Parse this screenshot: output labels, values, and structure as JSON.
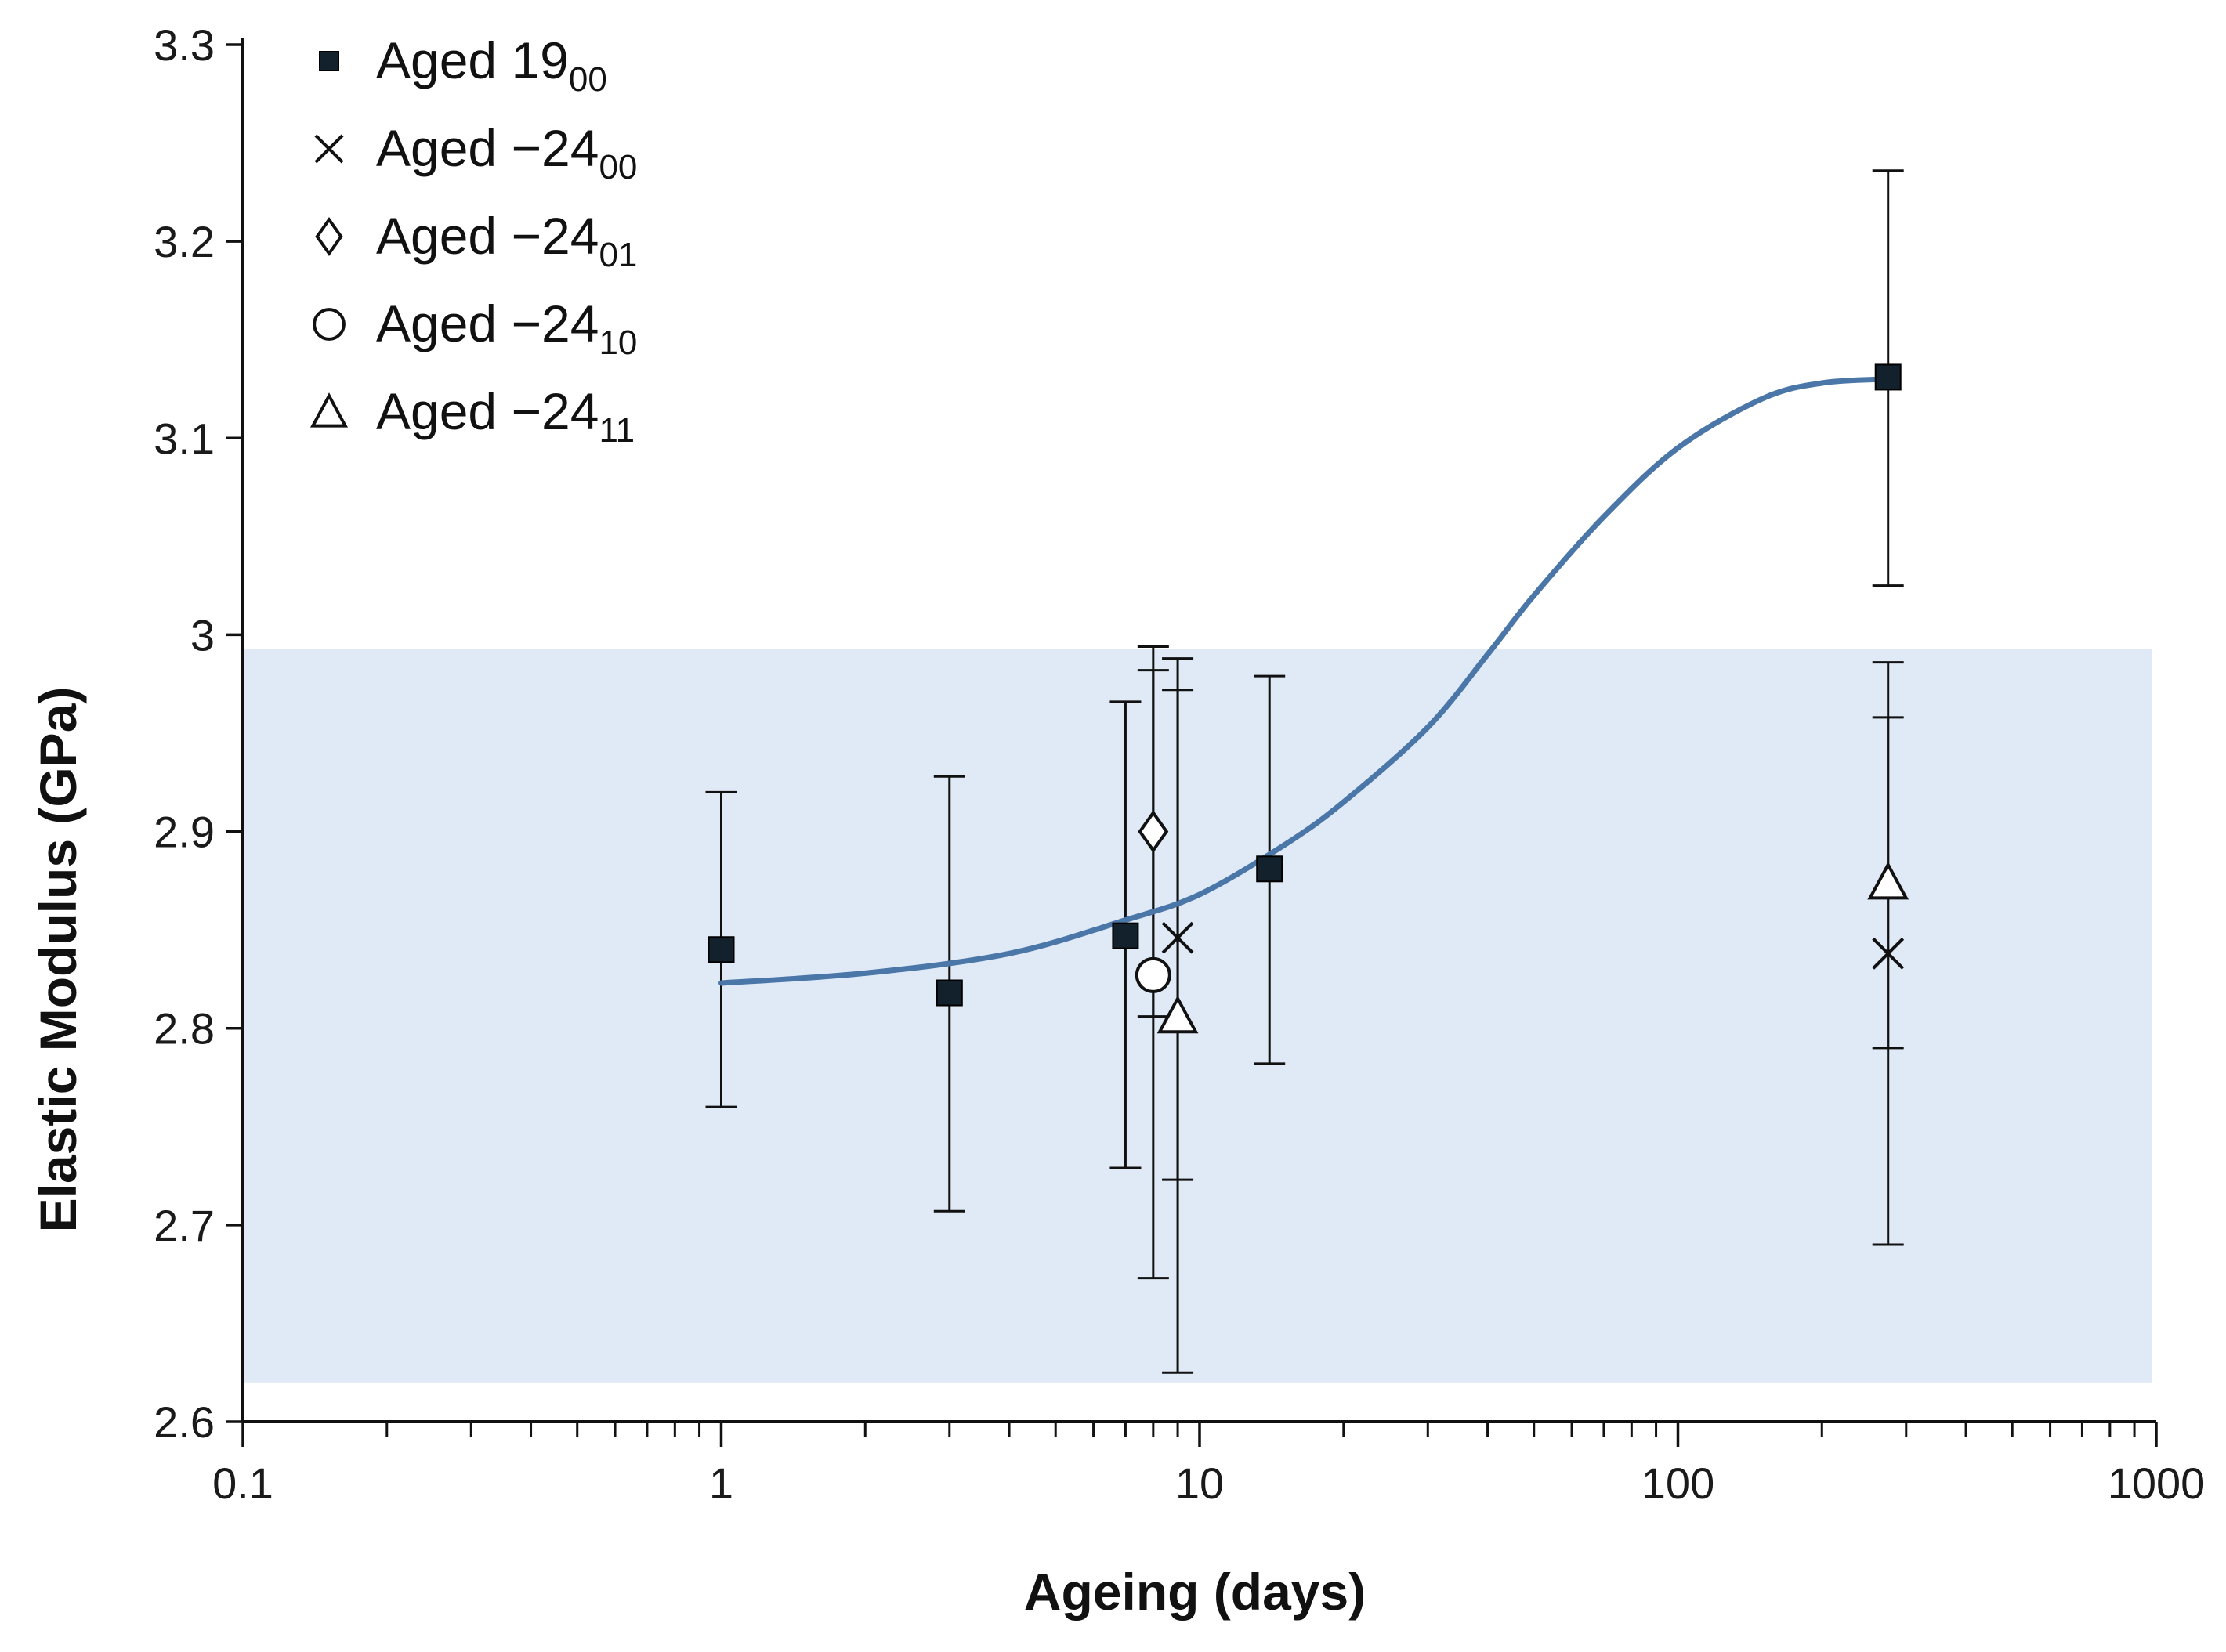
{
  "chart_data": {
    "type": "scatter",
    "title": "",
    "xlabel": "Ageing (days)",
    "ylabel": "Elastic Modulus (GPa)",
    "xscale": "log",
    "xlim": [
      0.1,
      1000
    ],
    "ylim": [
      2.6,
      3.3
    ],
    "x_ticks": [
      0.1,
      1,
      10,
      100,
      1000
    ],
    "x_tick_labels": [
      "0.1",
      "1",
      "10",
      "100",
      "1000"
    ],
    "y_ticks": [
      2.6,
      2.7,
      2.8,
      2.9,
      3.0,
      3.1,
      3.2,
      3.3
    ],
    "y_tick_labels": [
      "2.6",
      "2.7",
      "2.8",
      "2.9",
      "3",
      "3.1",
      "3.2",
      "3.3"
    ],
    "grid": false,
    "legend_position": "top-left",
    "shaded_band": {
      "x_range": [
        0.1,
        1000
      ],
      "y_range": [
        2.62,
        2.993
      ],
      "color": "#dfeaf6"
    },
    "fit_curve": {
      "color": "#4a76a8",
      "points": [
        [
          1,
          2.823
        ],
        [
          2,
          2.828
        ],
        [
          4,
          2.838
        ],
        [
          7,
          2.855
        ],
        [
          10,
          2.868
        ],
        [
          15,
          2.893
        ],
        [
          20,
          2.915
        ],
        [
          30,
          2.953
        ],
        [
          40,
          2.99
        ],
        [
          50,
          3.02
        ],
        [
          70,
          3.06
        ],
        [
          100,
          3.095
        ],
        [
          150,
          3.12
        ],
        [
          200,
          3.128
        ],
        [
          275,
          3.13
        ]
      ]
    },
    "series": [
      {
        "name": "Aged 19",
        "subscript": "00",
        "marker": "square",
        "points": [
          {
            "x": 1,
            "y": 2.84,
            "err_low": 2.76,
            "err_high": 2.92
          },
          {
            "x": 3,
            "y": 2.818,
            "err_low": 2.707,
            "err_high": 2.928
          },
          {
            "x": 7,
            "y": 2.847,
            "err_low": 2.729,
            "err_high": 2.966
          },
          {
            "x": 14,
            "y": 2.881,
            "err_low": 2.782,
            "err_high": 2.979
          },
          {
            "x": 275,
            "y": 3.131,
            "err_low": 3.025,
            "err_high": 3.236
          }
        ]
      },
      {
        "name": "Aged −24",
        "subscript": "00",
        "marker": "x",
        "points": [
          {
            "x": 9,
            "y": 2.846,
            "err_low": 2.723,
            "err_high": 2.988
          },
          {
            "x": 275,
            "y": 2.838,
            "err_low": 2.69,
            "err_high": 2.986
          }
        ]
      },
      {
        "name": "Aged −24",
        "subscript": "01",
        "marker": "diamond",
        "points": [
          {
            "x": 8,
            "y": 2.9,
            "err_low": 2.806,
            "err_high": 2.994
          }
        ]
      },
      {
        "name": "Aged −24",
        "subscript": "10",
        "marker": "circle",
        "points": [
          {
            "x": 8,
            "y": 2.827,
            "err_low": 2.673,
            "err_high": 2.982
          }
        ]
      },
      {
        "name": "Aged −24",
        "subscript": "11",
        "marker": "triangle",
        "points": [
          {
            "x": 9,
            "y": 2.806,
            "err_low": 2.625,
            "err_high": 2.972
          },
          {
            "x": 275,
            "y": 2.874,
            "err_low": 2.79,
            "err_high": 2.958
          }
        ]
      }
    ]
  }
}
